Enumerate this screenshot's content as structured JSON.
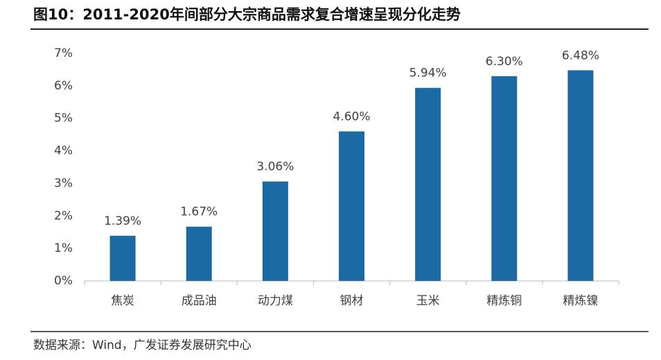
{
  "chart_data": {
    "type": "bar",
    "title": "图10：2011-2020年间部分大宗商品需求复合增速呈现分化走势",
    "categories": [
      "焦炭",
      "成品油",
      "动力煤",
      "钢材",
      "玉米",
      "精炼铜",
      "精炼镍"
    ],
    "values": [
      1.39,
      1.67,
      3.06,
      4.6,
      5.94,
      6.3,
      6.48
    ],
    "value_labels": [
      "1.39%",
      "1.67%",
      "3.06%",
      "4.60%",
      "5.94%",
      "6.30%",
      "6.48%"
    ],
    "color": "#1b6aa5",
    "ylim": [
      0,
      7
    ],
    "yticks": [
      {
        "value": 0,
        "label": "0%"
      },
      {
        "value": 1,
        "label": "1%"
      },
      {
        "value": 2,
        "label": "2%"
      },
      {
        "value": 3,
        "label": "3%"
      },
      {
        "value": 4,
        "label": "4%"
      },
      {
        "value": 5,
        "label": "5%"
      },
      {
        "value": 6,
        "label": "6%"
      },
      {
        "value": 7,
        "label": "7%"
      }
    ],
    "grid": false,
    "source": "数据来源：Wind，广发证券发展研究中心"
  }
}
